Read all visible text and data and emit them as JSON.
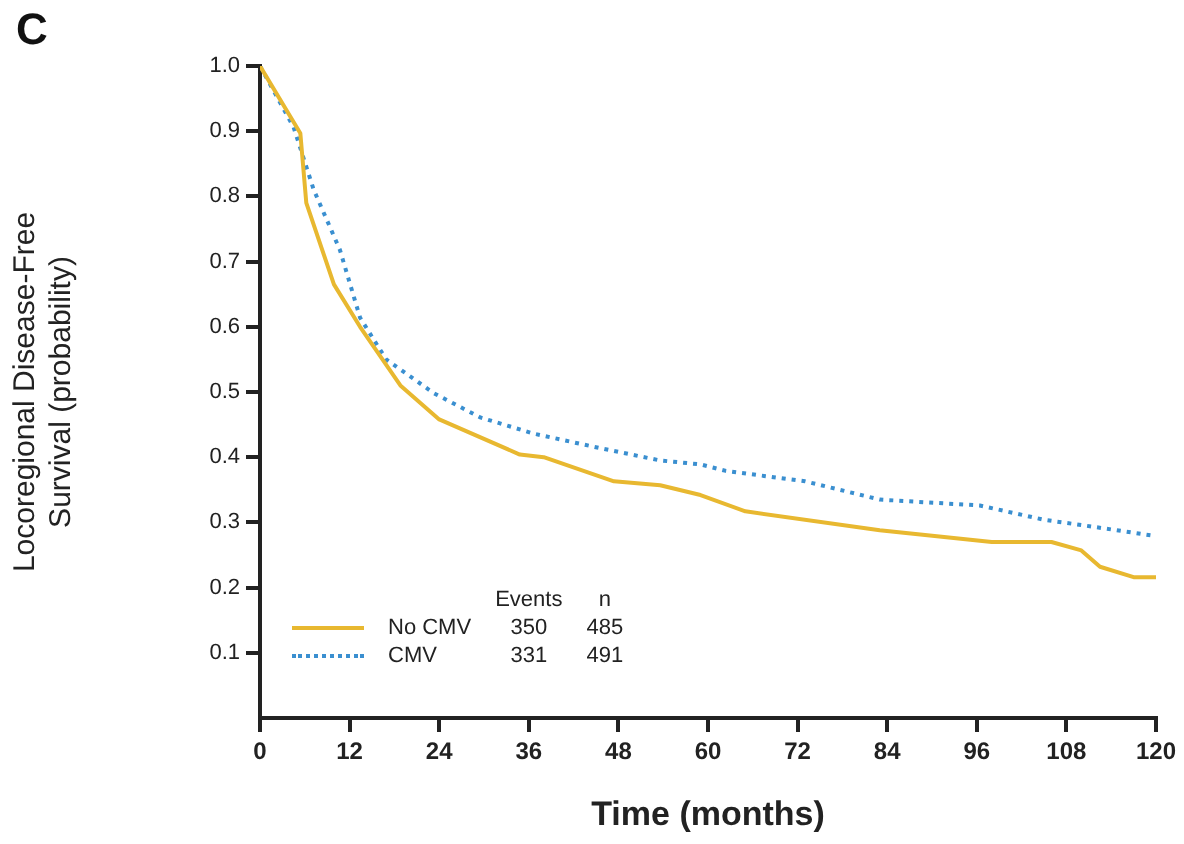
{
  "chart_data": {
    "type": "line",
    "title": "C",
    "xlabel": "Time (months)",
    "ylabel": "Locoregional Disease-Free Survival (probability)",
    "xlim": [
      0,
      120
    ],
    "xticks": [
      0,
      12,
      24,
      36,
      48,
      60,
      72,
      84,
      96,
      108,
      120
    ],
    "ylim": [
      0,
      1
    ],
    "yticks": [
      0.1,
      0.2,
      0.3,
      0.4,
      0.5,
      0.6,
      0.7,
      0.8,
      0.9,
      {
        "value": 1,
        "label": "1.0"
      }
    ],
    "series": [
      {
        "name": "No CMV",
        "color": "#e8b830",
        "line_style": "solid",
        "x": [
          0,
          5.4,
          6.2,
          9.9,
          13.4,
          18.8,
          24,
          34.8,
          38,
          47.4,
          53.6,
          59,
          65,
          83,
          98,
          106,
          110,
          112.5,
          117,
          120
        ],
        "values": [
          1,
          0.897,
          0.79,
          0.665,
          0.6,
          0.51,
          0.458,
          0.404,
          0.4,
          0.363,
          0.357,
          0.342,
          0.317,
          0.288,
          0.27,
          0.27,
          0.257,
          0.232,
          0.216,
          0.216
        ]
      },
      {
        "name": "CMV",
        "color": "#3a8fd0",
        "line_style": "dotted",
        "x": [
          0,
          4.5,
          7.2,
          10.7,
          13.4,
          16.9,
          23.3,
          29.5,
          36.7,
          45.5,
          53.6,
          59,
          62.4,
          73,
          83,
          96.4,
          105,
          110.6,
          120
        ],
        "values": [
          1,
          0.906,
          0.81,
          0.718,
          0.614,
          0.55,
          0.498,
          0.461,
          0.436,
          0.414,
          0.395,
          0.389,
          0.379,
          0.363,
          0.335,
          0.326,
          0.304,
          0.295,
          0.279
        ]
      }
    ],
    "legend": "bottom left",
    "legend_title": "Events",
    "annotations": [
      "n",
      "350",
      "485",
      "331",
      "491"
    ],
    "grid": false,
    "marker": "none"
  }
}
